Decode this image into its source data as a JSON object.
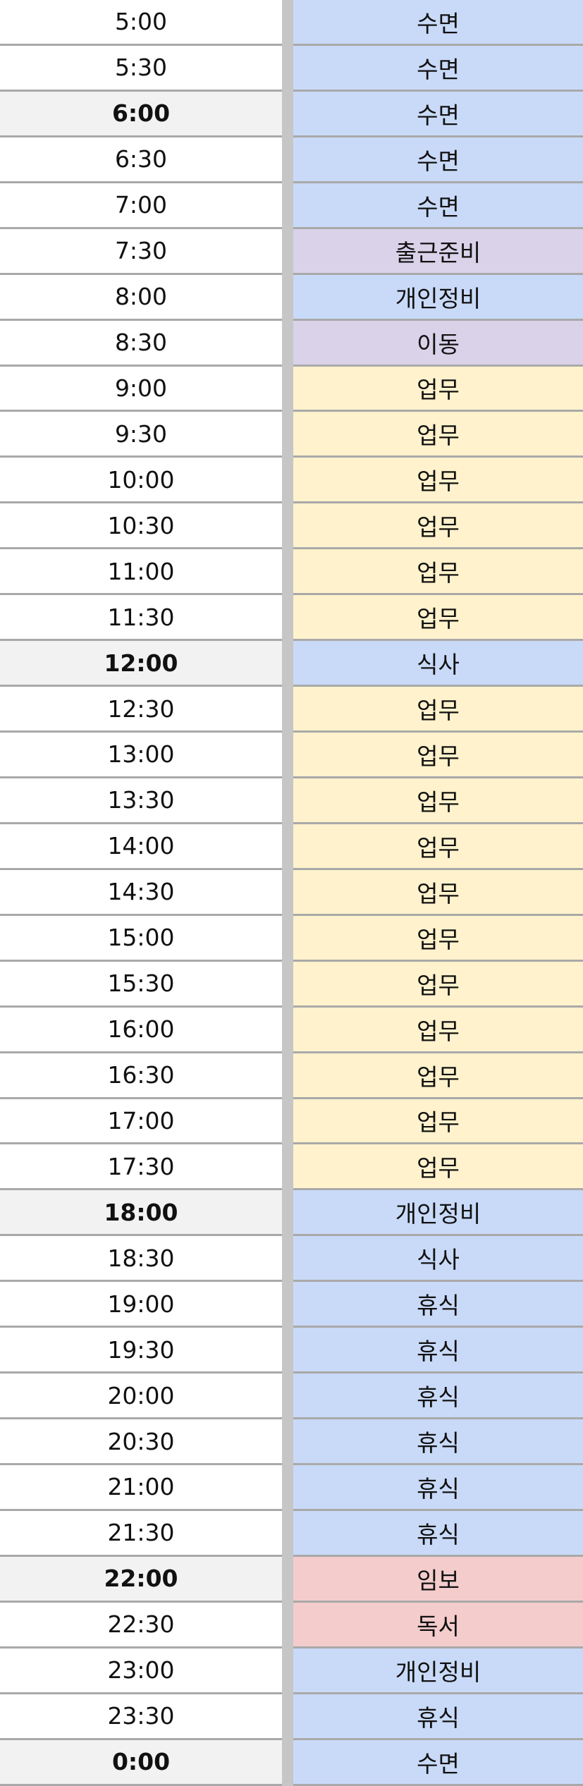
{
  "colors": {
    "blue": "#c9daf8",
    "purple": "#d9d2e9",
    "yellow": "#fff2cc",
    "red": "#f4cccc",
    "bold_time_bg": "#f2f2f2"
  },
  "rows": [
    {
      "time": "5:00",
      "activity": "수면",
      "bold": false,
      "color": "blue"
    },
    {
      "time": "5:30",
      "activity": "수면",
      "bold": false,
      "color": "blue"
    },
    {
      "time": "6:00",
      "activity": "수면",
      "bold": true,
      "color": "blue"
    },
    {
      "time": "6:30",
      "activity": "수면",
      "bold": false,
      "color": "blue"
    },
    {
      "time": "7:00",
      "activity": "수면",
      "bold": false,
      "color": "blue"
    },
    {
      "time": "7:30",
      "activity": "출근준비",
      "bold": false,
      "color": "purple"
    },
    {
      "time": "8:00",
      "activity": "개인정비",
      "bold": false,
      "color": "blue"
    },
    {
      "time": "8:30",
      "activity": "이동",
      "bold": false,
      "color": "purple"
    },
    {
      "time": "9:00",
      "activity": "업무",
      "bold": false,
      "color": "yellow"
    },
    {
      "time": "9:30",
      "activity": "업무",
      "bold": false,
      "color": "yellow"
    },
    {
      "time": "10:00",
      "activity": "업무",
      "bold": false,
      "color": "yellow"
    },
    {
      "time": "10:30",
      "activity": "업무",
      "bold": false,
      "color": "yellow"
    },
    {
      "time": "11:00",
      "activity": "업무",
      "bold": false,
      "color": "yellow"
    },
    {
      "time": "11:30",
      "activity": "업무",
      "bold": false,
      "color": "yellow"
    },
    {
      "time": "12:00",
      "activity": "식사",
      "bold": true,
      "color": "blue"
    },
    {
      "time": "12:30",
      "activity": "업무",
      "bold": false,
      "color": "yellow"
    },
    {
      "time": "13:00",
      "activity": "업무",
      "bold": false,
      "color": "yellow"
    },
    {
      "time": "13:30",
      "activity": "업무",
      "bold": false,
      "color": "yellow"
    },
    {
      "time": "14:00",
      "activity": "업무",
      "bold": false,
      "color": "yellow"
    },
    {
      "time": "14:30",
      "activity": "업무",
      "bold": false,
      "color": "yellow"
    },
    {
      "time": "15:00",
      "activity": "업무",
      "bold": false,
      "color": "yellow"
    },
    {
      "time": "15:30",
      "activity": "업무",
      "bold": false,
      "color": "yellow"
    },
    {
      "time": "16:00",
      "activity": "업무",
      "bold": false,
      "color": "yellow"
    },
    {
      "time": "16:30",
      "activity": "업무",
      "bold": false,
      "color": "yellow"
    },
    {
      "time": "17:00",
      "activity": "업무",
      "bold": false,
      "color": "yellow"
    },
    {
      "time": "17:30",
      "activity": "업무",
      "bold": false,
      "color": "yellow"
    },
    {
      "time": "18:00",
      "activity": "개인정비",
      "bold": true,
      "color": "blue"
    },
    {
      "time": "18:30",
      "activity": "식사",
      "bold": false,
      "color": "blue"
    },
    {
      "time": "19:00",
      "activity": "휴식",
      "bold": false,
      "color": "blue"
    },
    {
      "time": "19:30",
      "activity": "휴식",
      "bold": false,
      "color": "blue"
    },
    {
      "time": "20:00",
      "activity": "휴식",
      "bold": false,
      "color": "blue"
    },
    {
      "time": "20:30",
      "activity": "휴식",
      "bold": false,
      "color": "blue"
    },
    {
      "time": "21:00",
      "activity": "휴식",
      "bold": false,
      "color": "blue"
    },
    {
      "time": "21:30",
      "activity": "휴식",
      "bold": false,
      "color": "blue"
    },
    {
      "time": "22:00",
      "activity": "임보",
      "bold": true,
      "color": "red"
    },
    {
      "time": "22:30",
      "activity": "독서",
      "bold": false,
      "color": "red"
    },
    {
      "time": "23:00",
      "activity": "개인정비",
      "bold": false,
      "color": "blue"
    },
    {
      "time": "23:30",
      "activity": "휴식",
      "bold": false,
      "color": "blue"
    },
    {
      "time": "0:00",
      "activity": "수면",
      "bold": true,
      "color": "blue"
    }
  ]
}
